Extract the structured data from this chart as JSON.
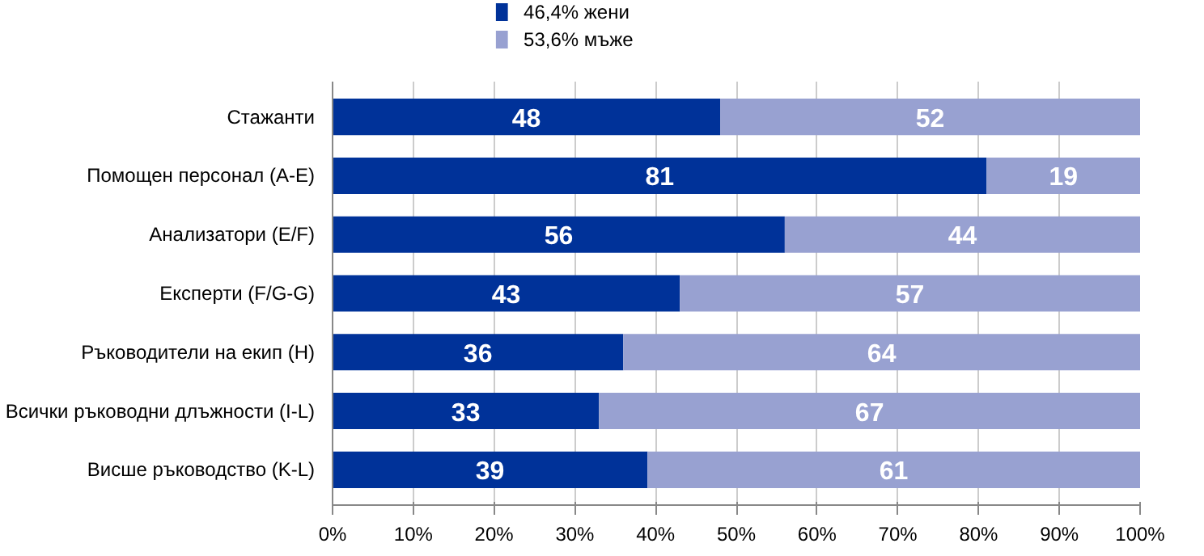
{
  "chart_data": {
    "type": "bar",
    "orientation": "horizontal",
    "stacked": true,
    "categories": [
      "Стажанти",
      "Помощен персонал (A-E)",
      "Анализатори (E/F)",
      "Експерти (F/G-G)",
      "Ръководители на екип (H)",
      "Всички ръководни длъжности (I-L)",
      "Висше ръководство (K-L)"
    ],
    "series": [
      {
        "name": "46,4% жени",
        "color": "#003299",
        "values": [
          48,
          81,
          56,
          43,
          36,
          33,
          39
        ]
      },
      {
        "name": "53,6% мъже",
        "color": "#98a1d1",
        "values": [
          52,
          19,
          44,
          57,
          64,
          67,
          61
        ]
      }
    ],
    "xlim": [
      0,
      100
    ],
    "xticks": [
      {
        "value": 0,
        "label": "0%"
      },
      {
        "value": 10,
        "label": "10%"
      },
      {
        "value": 20,
        "label": "20%"
      },
      {
        "value": 30,
        "label": "30%"
      },
      {
        "value": 40,
        "label": "40%"
      },
      {
        "value": 50,
        "label": "50%"
      },
      {
        "value": 60,
        "label": "60%"
      },
      {
        "value": 70,
        "label": "70%"
      },
      {
        "value": 80,
        "label": "80%"
      },
      {
        "value": 90,
        "label": "90%"
      },
      {
        "value": 100,
        "label": "100%"
      }
    ],
    "grid": "x",
    "legend": "top left",
    "data_labels": true
  }
}
